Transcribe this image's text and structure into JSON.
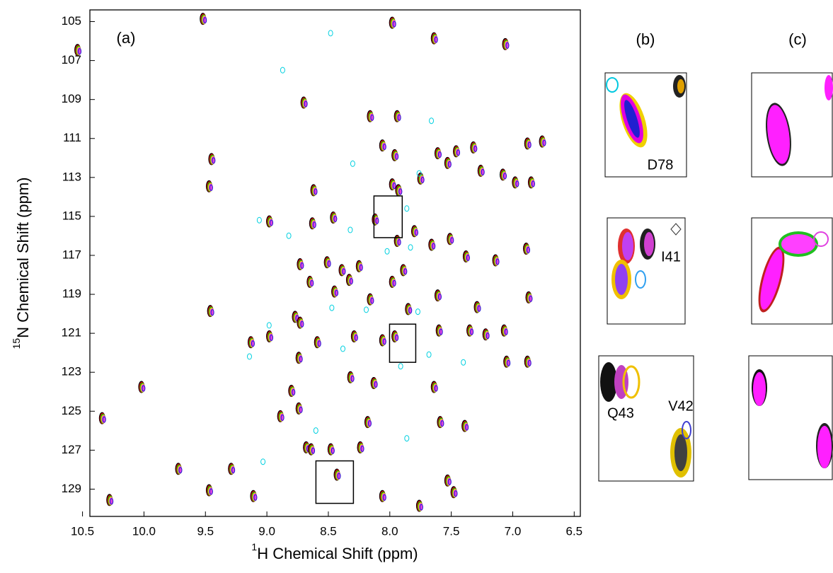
{
  "chart_data": {
    "type": "scatter",
    "xlabel_sup": "1",
    "xlabel": "H Chemical Shift (ppm)",
    "ylabel_sup": "15",
    "ylabel": "N Chemical Shift (ppm)",
    "panel_labels": [
      "(a)",
      "(b)",
      "(c)"
    ],
    "inset_labels": [
      "D78",
      "I41",
      "Q43",
      "V42"
    ],
    "xlim": [
      10.44,
      6.45
    ],
    "ylim": [
      104.4,
      130.4
    ],
    "y_inverted": true,
    "xticks": [
      10.5,
      {
        "value": 10,
        "label": "10.0"
      },
      9.5,
      {
        "value": 9,
        "label": "9.0"
      },
      8.5,
      {
        "value": 8,
        "label": "8.0"
      },
      7.5,
      {
        "value": 7,
        "label": "7.0"
      },
      6.5
    ],
    "yticks": [
      105,
      107,
      109,
      111,
      113,
      115,
      117,
      119,
      121,
      123,
      125,
      127,
      129
    ],
    "series": [
      {
        "colors": [
          "#000000",
          "#e00000",
          "#00b000",
          "#f0d000",
          "#e040e0",
          "#2020d0"
        ],
        "x": [
          9.51,
          7.97,
          10.53,
          7.63,
          7.05,
          8.69,
          8.15,
          7.93,
          9.44,
          9.46,
          8.05,
          7.95,
          7.6,
          7.52,
          7.45,
          7.31,
          6.87,
          6.75,
          7.25,
          7.07,
          6.97,
          6.84,
          8.61,
          7.97,
          7.92,
          7.74,
          8.11,
          7.79,
          7.93,
          8.45,
          8.62,
          8.97,
          7.65,
          7.5,
          7.37,
          7.13,
          6.88,
          8.72,
          8.5,
          8.38,
          8.24,
          7.88,
          7.97,
          8.32,
          8.44,
          8.64,
          8.76,
          8.72,
          9.45,
          8.15,
          7.84,
          7.6,
          7.28,
          6.86,
          7.06,
          7.21,
          7.34,
          7.59,
          7.95,
          8.05,
          8.28,
          8.58,
          8.97,
          9.12,
          7.04,
          6.87,
          8.73,
          8.31,
          8.12,
          8.79,
          10.01,
          7.63,
          8.73,
          8.88,
          8.17,
          7.58,
          7.38,
          10.33,
          8.23,
          8.67,
          8.63,
          8.47,
          8.42,
          9.71,
          9.46,
          9.28,
          10.27,
          7.52,
          7.47,
          7.75,
          8.05,
          9.1
        ],
        "values": [
          104.9,
          105.1,
          106.5,
          105.9,
          106.2,
          109.2,
          109.9,
          109.9,
          112.1,
          113.5,
          111.4,
          111.9,
          111.8,
          112.3,
          111.7,
          111.5,
          111.3,
          111.2,
          112.7,
          112.9,
          113.3,
          113.3,
          113.7,
          113.4,
          113.7,
          113.1,
          115.2,
          115.8,
          116.3,
          115.1,
          115.4,
          115.3,
          116.5,
          116.2,
          117.1,
          117.3,
          116.7,
          117.5,
          117.4,
          117.8,
          117.6,
          117.8,
          118.4,
          118.3,
          118.9,
          118.4,
          120.2,
          120.5,
          119.9,
          119.3,
          119.8,
          119.1,
          119.7,
          119.2,
          120.9,
          121.1,
          120.9,
          120.9,
          121.2,
          121.4,
          121.2,
          121.5,
          121.2,
          121.5,
          122.5,
          122.5,
          122.3,
          123.3,
          123.6,
          124.0,
          123.8,
          123.8,
          124.9,
          125.3,
          125.6,
          125.6,
          125.8,
          125.4,
          126.9,
          126.9,
          127.0,
          127.0,
          128.3,
          128.0,
          129.1,
          128.0,
          129.6,
          128.6,
          129.2,
          129.9,
          129.4,
          129.4
        ]
      },
      {
        "colors": [
          "#00d0e0"
        ],
        "x": [
          9.06,
          8.82,
          8.32,
          7.86,
          8.98,
          9.14,
          8.47,
          7.77,
          7.68,
          7.91,
          8.38,
          8.6,
          7.86,
          8.87,
          8.48,
          7.66,
          9.03,
          8.02,
          7.83,
          8.19,
          7.4,
          7.76,
          8.3
        ],
        "values": [
          115.2,
          116.0,
          115.7,
          114.6,
          120.6,
          122.2,
          119.7,
          119.9,
          122.1,
          122.7,
          121.8,
          126.0,
          126.4,
          107.5,
          105.6,
          110.1,
          127.6,
          116.8,
          116.6,
          119.8,
          122.5,
          112.8,
          112.3
        ]
      }
    ],
    "highlight_boxes": [
      {
        "x": [
          8.129,
          7.899
        ],
        "y": [
          113.95,
          116.09
        ]
      },
      {
        "x": [
          8.002,
          7.789
        ],
        "y": [
          120.53,
          122.49
        ]
      },
      {
        "x": [
          8.601,
          8.296
        ],
        "y": [
          127.55,
          129.73
        ]
      }
    ]
  }
}
